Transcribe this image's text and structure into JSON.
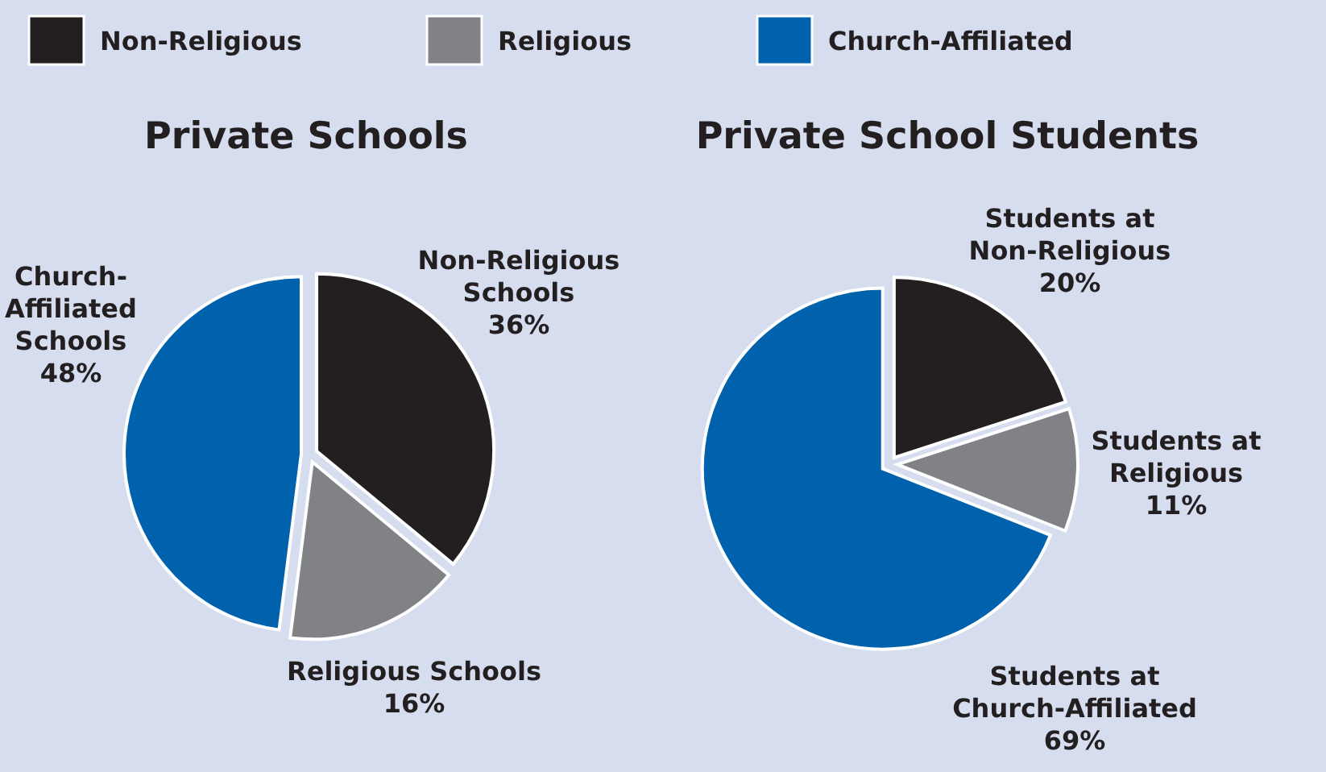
{
  "chart_data": [
    {
      "type": "pie",
      "title": "Private Schools",
      "legend": "top",
      "categories": [
        "Non-Religious",
        "Religious",
        "Church-Affiliated"
      ],
      "values": [
        36,
        16,
        48
      ],
      "colors": [
        "#231f20",
        "#808285",
        "#0061ac"
      ],
      "value_labels": [
        "Non-Religious\nSchools\n36%",
        "Religious Schools\n16%",
        "Church-\nAffiliated\nSchools\n48%"
      ]
    },
    {
      "type": "pie",
      "title": "Private School Students",
      "legend": false,
      "categories": [
        null,
        null,
        null
      ],
      "values": [
        20,
        11,
        69
      ],
      "colors": [
        "#231f20",
        "#808285",
        "#0061ac"
      ],
      "value_labels": [
        "Students at\nNon-Religious\n20%",
        "Students at\nReligious\n11%",
        "Students at\nChurch-Affiliated\n69%"
      ]
    }
  ]
}
